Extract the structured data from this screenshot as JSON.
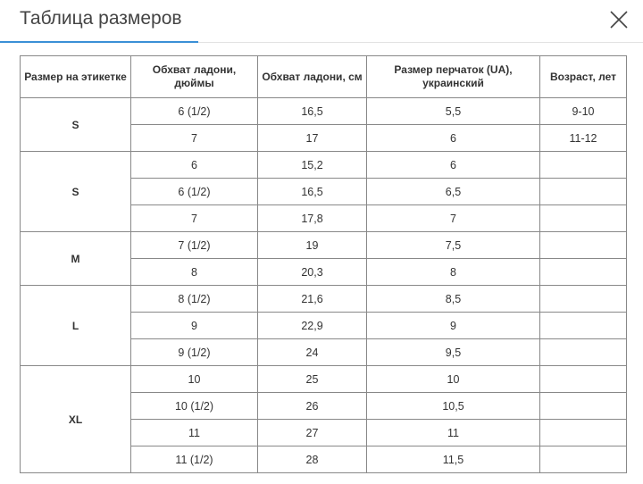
{
  "header": {
    "title": "Таблица размеров"
  },
  "table": {
    "headers": [
      "Размер на этикетке",
      "Обхват ладони, дюймы",
      "Обхват ладони, см",
      "Размер перчаток (UA), украинский",
      "Возраст, лет"
    ],
    "groups": [
      {
        "size": "S",
        "rows": [
          [
            "6 (1/2)",
            "16,5",
            "5,5",
            "9-10"
          ],
          [
            "7",
            "17",
            "6",
            "11-12"
          ]
        ]
      },
      {
        "size": "S",
        "rows": [
          [
            "6",
            "15,2",
            "6"
          ],
          [
            "6 (1/2)",
            "16,5",
            "6,5"
          ],
          [
            "7",
            "17,8",
            "7"
          ]
        ]
      },
      {
        "size": "M",
        "rows": [
          [
            "7 (1/2)",
            "19",
            "7,5"
          ],
          [
            "8",
            "20,3",
            "8"
          ]
        ]
      },
      {
        "size": "L",
        "rows": [
          [
            "8 (1/2)",
            "21,6",
            "8,5"
          ],
          [
            "9",
            "22,9",
            "9"
          ],
          [
            "9 (1/2)",
            "24",
            "9,5"
          ]
        ]
      },
      {
        "size": "XL",
        "rows": [
          [
            "10",
            "25",
            "10"
          ],
          [
            "10 (1/2)",
            "26",
            "10,5"
          ],
          [
            "11",
            "27",
            "11"
          ],
          [
            "11 (1/2)",
            "28",
            "11,5"
          ]
        ]
      }
    ]
  }
}
